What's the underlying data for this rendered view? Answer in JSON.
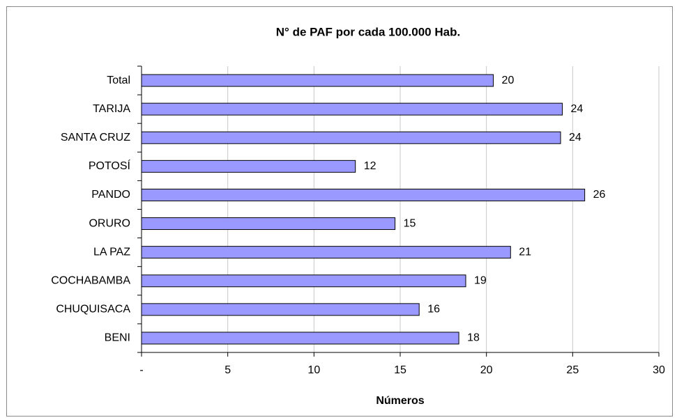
{
  "chart_data": {
    "type": "barh",
    "title": "N° de PAF por cada 100.000 Hab.",
    "x_label": "Números",
    "categories": [
      "Total",
      "TARIJA",
      "SANTA CRUZ",
      "POTOSÍ",
      "PANDO",
      "ORURO",
      "LA PAZ",
      "COCHABAMBA",
      "CHUQUISACA",
      "BENI"
    ],
    "values": [
      20.4,
      24.4,
      24.3,
      12.4,
      25.7,
      14.7,
      21.4,
      18.8,
      16.1,
      18.4
    ],
    "value_labels": [
      "20",
      "24",
      "24",
      "12",
      "26",
      "15",
      "21",
      "19",
      "16",
      "18"
    ],
    "color": "#9999ff",
    "xlim": [
      0,
      30
    ],
    "xticks": [
      {
        "value": 0,
        "label": "-"
      },
      5,
      10,
      15,
      20,
      25,
      30
    ],
    "grid": true
  }
}
